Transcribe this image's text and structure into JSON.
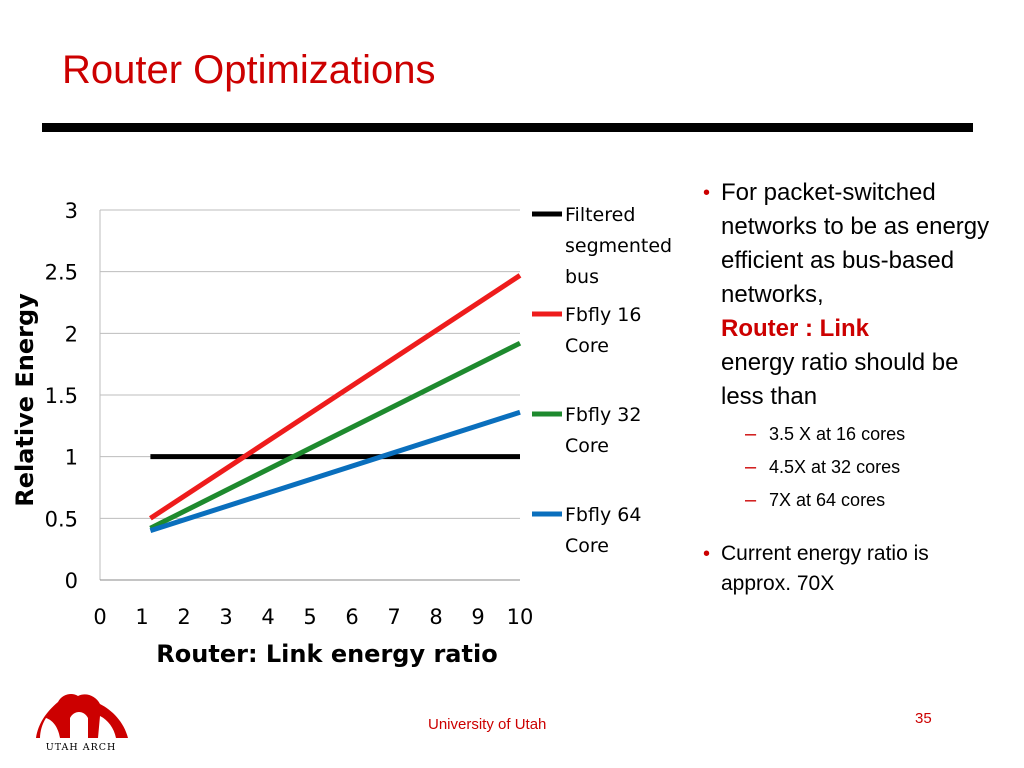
{
  "slide": {
    "title": "Router Optimizations",
    "footer": "University of Utah",
    "page_number": "35",
    "logo_text": "UTAH ARCH"
  },
  "colors": {
    "title": "#cc0000",
    "accent": "#cc0000",
    "series": [
      "#000000",
      "#ee1c1c",
      "#1e8a2e",
      "#0a6fbd"
    ]
  },
  "bullets": [
    {
      "text_before": "For packet-switched networks to be as energy efficient as bus-based networks,",
      "emphasis": "Router : Link",
      "text_after": "energy ratio should be less than",
      "subitems": [
        "3.5 X at 16 cores",
        "4.5X at 32 cores",
        "7X at 64 cores"
      ]
    },
    {
      "text": "Current energy ratio is approx. 70X"
    }
  ],
  "chart_data": {
    "type": "line",
    "title": "",
    "xlabel": "Router: Link energy ratio",
    "ylabel": "Relative Energy",
    "xlim": [
      0,
      10
    ],
    "ylim": [
      0,
      3
    ],
    "xticks": [
      "0",
      "1",
      "2",
      "3",
      "4",
      "5",
      "6",
      "7",
      "8",
      "9",
      "10"
    ],
    "yticks": [
      "0",
      "0.5",
      "1",
      "1.5",
      "2",
      "2.5",
      "3"
    ],
    "grid": true,
    "legend_position": "right",
    "series": [
      {
        "name": "Filtered segmented bus",
        "x": [
          1.2,
          10
        ],
        "y": [
          1.0,
          1.0
        ]
      },
      {
        "name": "Fbfly 16 Core",
        "x": [
          1.2,
          10
        ],
        "y": [
          0.5,
          2.47
        ]
      },
      {
        "name": "Fbfly 32 Core",
        "x": [
          1.2,
          10
        ],
        "y": [
          0.42,
          1.92
        ]
      },
      {
        "name": "Fbfly 64 Core",
        "x": [
          1.2,
          10
        ],
        "y": [
          0.4,
          1.36
        ]
      }
    ]
  }
}
